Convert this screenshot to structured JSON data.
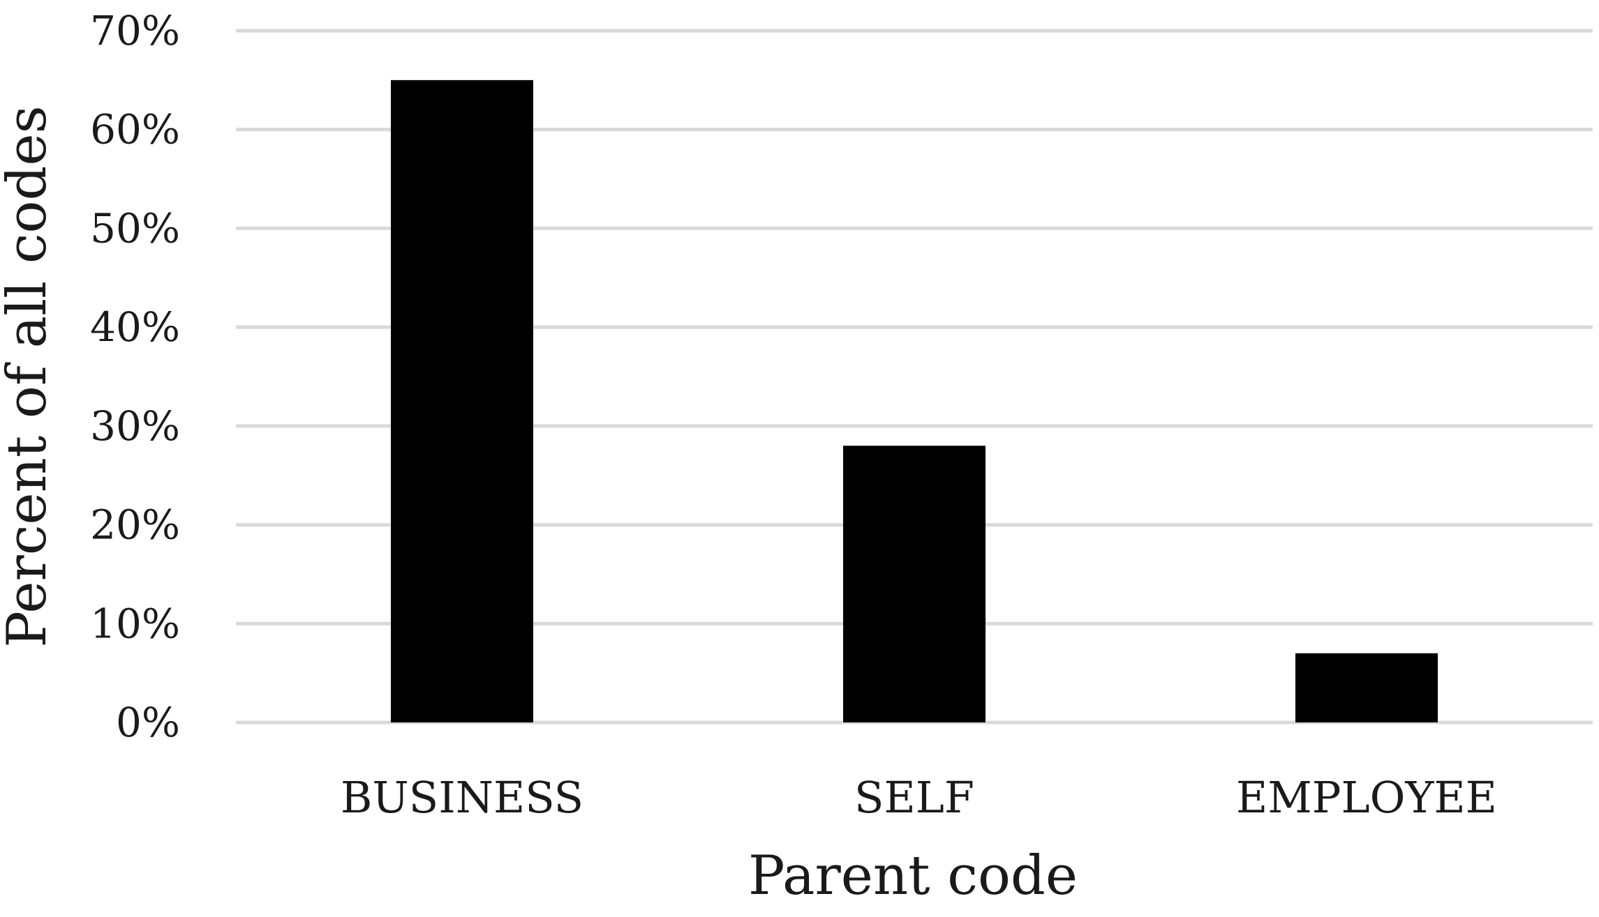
{
  "chart_data": {
    "type": "bar",
    "title": "",
    "xlabel": "Parent code",
    "ylabel": "Percent of all codes",
    "categories": [
      "BUSINESS",
      "SELF",
      "EMPLOYEE"
    ],
    "series": [
      {
        "values": [
          65,
          28,
          7
        ]
      }
    ],
    "ylim": [
      0,
      70
    ],
    "yticks": [
      0,
      10,
      20,
      30,
      40,
      50,
      60,
      70
    ],
    "ytick_labels": [
      "0%",
      "10%",
      "20%",
      "30%",
      "40%",
      "50%",
      "60%",
      "70%"
    ],
    "grid": true,
    "legend": "none",
    "colors": {
      "bar": "#000000",
      "grid": "#d9d9d9",
      "text": "#1a1a1a"
    }
  }
}
